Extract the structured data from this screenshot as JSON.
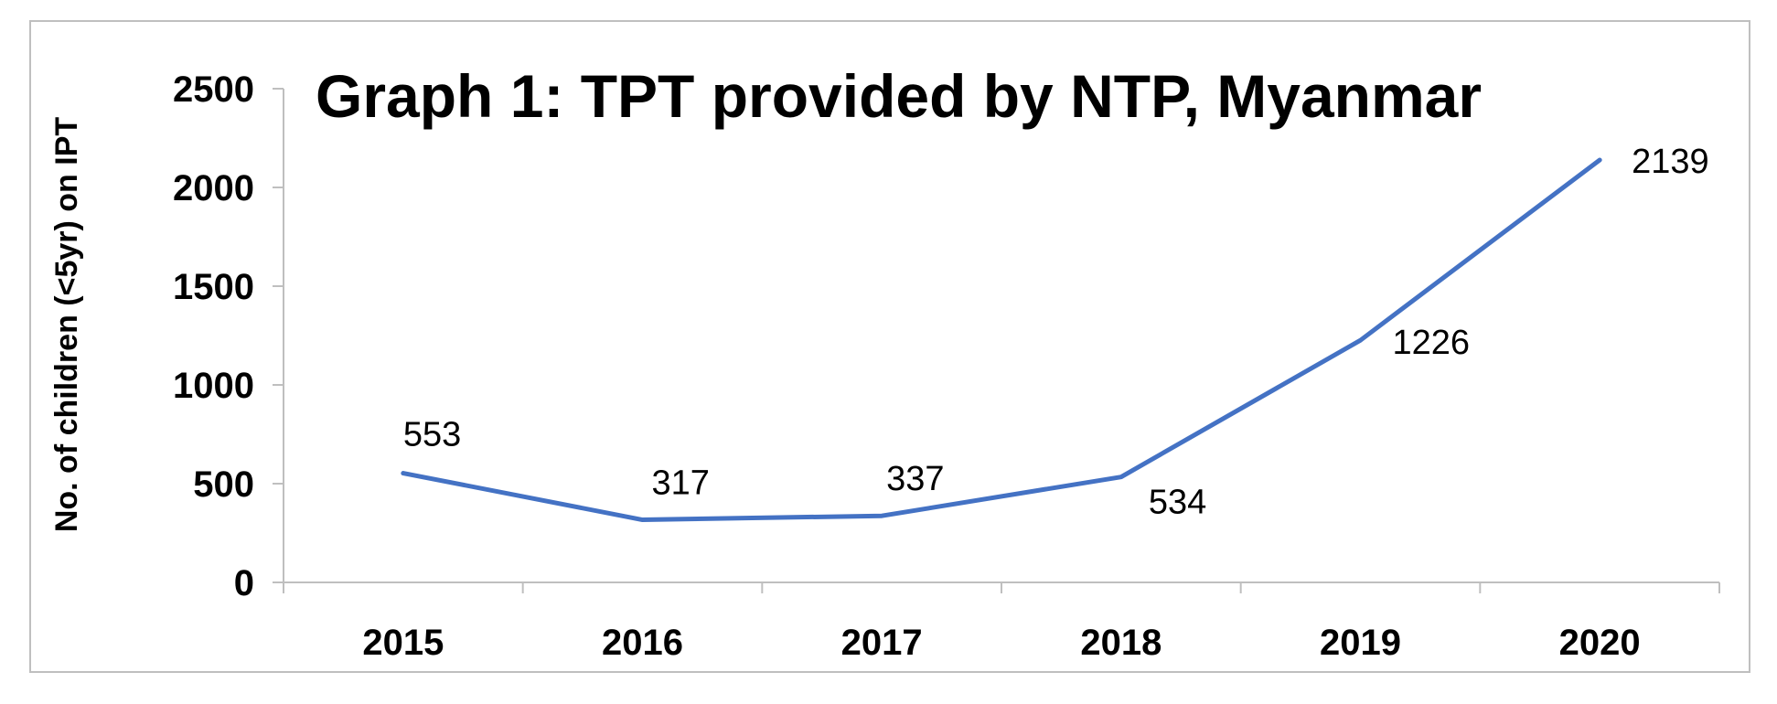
{
  "chart_data": {
    "type": "line",
    "title": "Graph 1: TPT provided by NTP, Myanmar",
    "xlabel": "",
    "ylabel": "No. of children (<5yr) on IPT",
    "categories": [
      "2015",
      "2016",
      "2017",
      "2018",
      "2019",
      "2020"
    ],
    "series": [
      {
        "values": [
          553,
          317,
          337,
          534,
          1226,
          2139
        ],
        "color": "#4472C4"
      }
    ],
    "ylim": [
      0,
      2500
    ],
    "yticks": [
      0,
      500,
      1000,
      1500,
      2000,
      2500
    ],
    "grid": false,
    "legend": "none",
    "data_labels": [
      "553",
      "317",
      "337",
      "534",
      "1226",
      "2139"
    ]
  }
}
